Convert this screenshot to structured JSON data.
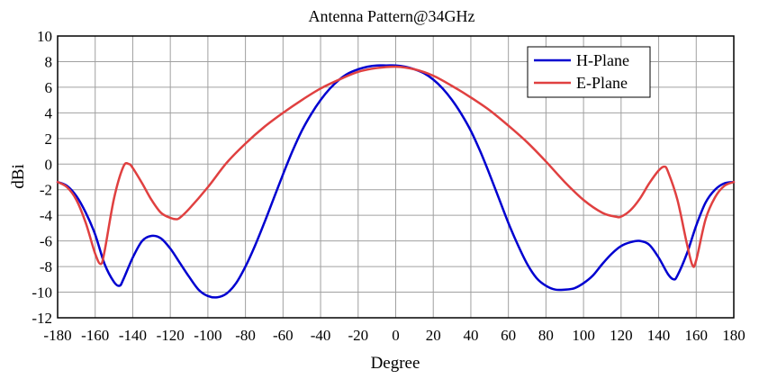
{
  "chart_data": {
    "type": "line",
    "title": "Antenna Pattern@34GHz",
    "xlabel": "Degree",
    "ylabel": "dBi",
    "xlim": [
      -180,
      180
    ],
    "ylim": [
      -12,
      10
    ],
    "xticks": [
      "-180",
      "-160",
      "-140",
      "-120",
      "-100",
      "-80",
      "-60",
      "-40",
      "-20",
      "0",
      "20",
      "40",
      "60",
      "80",
      "100",
      "120",
      "140",
      "160",
      "180"
    ],
    "yticks": [
      "-12",
      "-10",
      "-8",
      "-6",
      "-4",
      "-2",
      "0",
      "2",
      "4",
      "6",
      "8",
      "10"
    ],
    "grid": true,
    "legend_position": "top-right",
    "series": [
      {
        "name": "H-Plane",
        "color": "#0000d0",
        "x": [
          -180,
          -175,
          -170,
          -165,
          -160,
          -155,
          -150,
          -147,
          -145,
          -140,
          -135,
          -130,
          -125,
          -120,
          -115,
          -110,
          -105,
          -100,
          -95,
          -90,
          -85,
          -80,
          -75,
          -70,
          -65,
          -60,
          -55,
          -50,
          -45,
          -40,
          -35,
          -30,
          -25,
          -20,
          -15,
          -10,
          -5,
          0,
          5,
          10,
          15,
          20,
          25,
          30,
          35,
          40,
          45,
          50,
          55,
          60,
          65,
          70,
          75,
          80,
          85,
          90,
          95,
          100,
          105,
          110,
          115,
          120,
          125,
          130,
          135,
          140,
          145,
          148,
          150,
          155,
          160,
          165,
          170,
          175,
          180
        ],
        "y": [
          -1.4,
          -1.7,
          -2.5,
          -3.8,
          -5.5,
          -7.8,
          -9.2,
          -9.5,
          -9.0,
          -7.3,
          -6.0,
          -5.6,
          -5.8,
          -6.6,
          -7.7,
          -8.8,
          -9.8,
          -10.3,
          -10.4,
          -10.1,
          -9.3,
          -8.0,
          -6.4,
          -4.6,
          -2.7,
          -0.8,
          1.0,
          2.6,
          3.9,
          5.0,
          5.9,
          6.6,
          7.1,
          7.4,
          7.6,
          7.7,
          7.7,
          7.7,
          7.6,
          7.4,
          7.1,
          6.6,
          5.9,
          5.0,
          3.9,
          2.6,
          1.0,
          -0.8,
          -2.7,
          -4.6,
          -6.3,
          -7.8,
          -8.9,
          -9.5,
          -9.8,
          -9.8,
          -9.7,
          -9.3,
          -8.7,
          -7.8,
          -7.0,
          -6.4,
          -6.1,
          -6.0,
          -6.3,
          -7.3,
          -8.6,
          -9.0,
          -8.7,
          -7.0,
          -4.8,
          -3.0,
          -2.0,
          -1.5,
          -1.4
        ]
      },
      {
        "name": "E-Plane",
        "color": "#e04040",
        "x": [
          -180,
          -175,
          -170,
          -165,
          -160,
          -157,
          -155,
          -150,
          -145,
          -142,
          -140,
          -135,
          -130,
          -125,
          -120,
          -117,
          -115,
          -110,
          -100,
          -90,
          -80,
          -70,
          -60,
          -50,
          -40,
          -30,
          -20,
          -10,
          0,
          10,
          20,
          30,
          40,
          50,
          60,
          70,
          80,
          90,
          100,
          110,
          117,
          120,
          125,
          130,
          135,
          140,
          143,
          145,
          150,
          155,
          158,
          160,
          165,
          170,
          175,
          180
        ],
        "y": [
          -1.4,
          -1.8,
          -2.8,
          -4.6,
          -7.0,
          -7.8,
          -6.8,
          -2.7,
          -0.2,
          0.0,
          -0.3,
          -1.5,
          -2.8,
          -3.8,
          -4.2,
          -4.3,
          -4.2,
          -3.5,
          -1.8,
          0.1,
          1.6,
          2.9,
          4.0,
          5.0,
          5.9,
          6.6,
          7.2,
          7.5,
          7.6,
          7.4,
          6.9,
          6.1,
          5.2,
          4.2,
          3.0,
          1.7,
          0.2,
          -1.4,
          -2.8,
          -3.8,
          -4.1,
          -4.1,
          -3.6,
          -2.7,
          -1.5,
          -0.5,
          -0.2,
          -0.6,
          -2.8,
          -6.2,
          -7.9,
          -7.5,
          -4.3,
          -2.6,
          -1.7,
          -1.4
        ]
      }
    ]
  }
}
